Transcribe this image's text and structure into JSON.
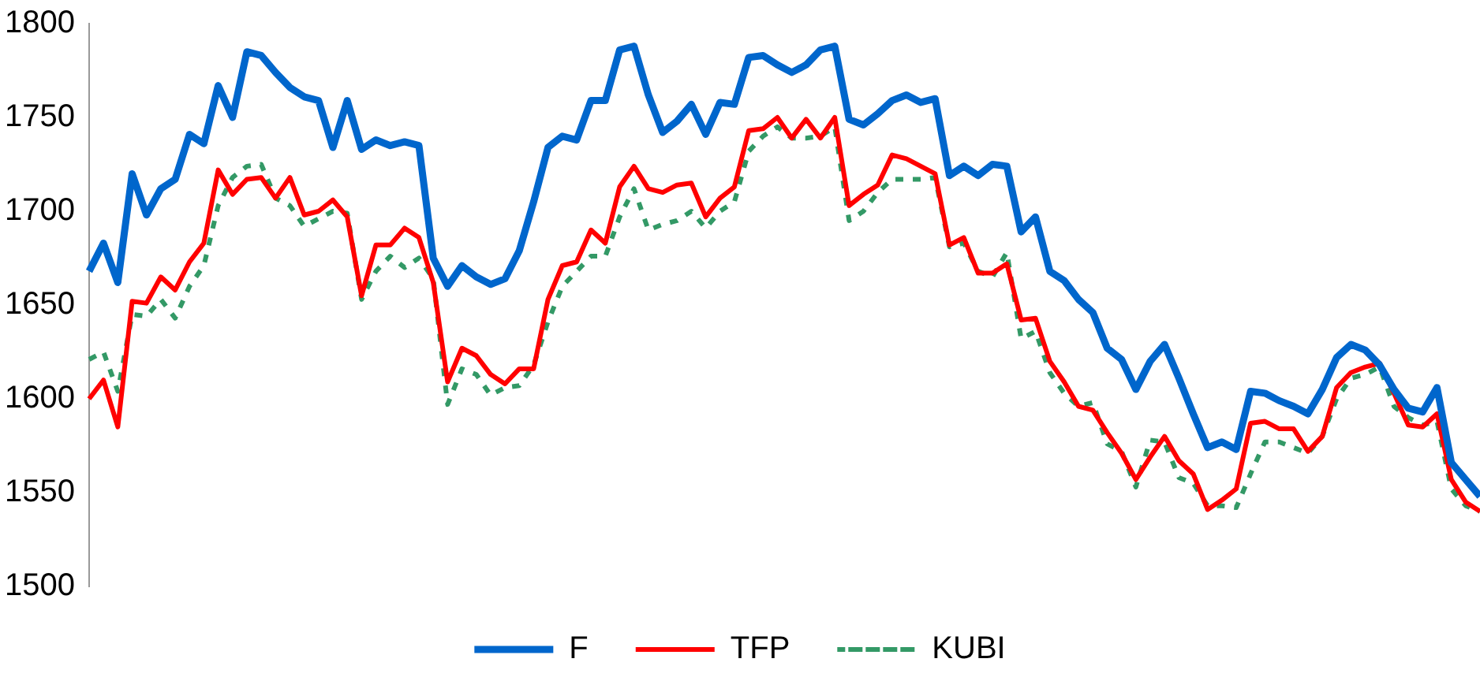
{
  "chart_data": {
    "type": "line",
    "categories": [
      null,
      null,
      null,
      null,
      null,
      null,
      null,
      null,
      null,
      null,
      null,
      null,
      null,
      null,
      null,
      null,
      null,
      null,
      null,
      null,
      null,
      null,
      null,
      null,
      null,
      null,
      null,
      null,
      null,
      null,
      null,
      null,
      null,
      null,
      null,
      null,
      null,
      null,
      null,
      null,
      null,
      null,
      null,
      null,
      null,
      null,
      null,
      null,
      null,
      null,
      null,
      null,
      null,
      null,
      null,
      null,
      null,
      null,
      null,
      null,
      null,
      null,
      null,
      null,
      null,
      null,
      null,
      null,
      null,
      null,
      null,
      null,
      null,
      null,
      null,
      null,
      null,
      null,
      null,
      null,
      null,
      null,
      null,
      null,
      null,
      null,
      null,
      null,
      null,
      null,
      null,
      null,
      null,
      null,
      null,
      null,
      null,
      null
    ],
    "series": [
      {
        "name": "F",
        "color": "#0066cc",
        "line_style": "solid",
        "values": [
          1668,
          1683,
          1662,
          1720,
          1698,
          1712,
          1717,
          1741,
          1736,
          1767,
          1750,
          1785,
          1783,
          1774,
          1766,
          1761,
          1759,
          1734,
          1759,
          1733,
          1738,
          1735,
          1737,
          1735,
          1675,
          1660,
          1671,
          1665,
          1661,
          1664,
          1679,
          1705,
          1734,
          1740,
          1738,
          1759,
          1759,
          1786,
          1788,
          1762,
          1742,
          1748,
          1757,
          1741,
          1758,
          1757,
          1782,
          1783,
          1778,
          1774,
          1778,
          1786,
          1788,
          1749,
          1746,
          1752,
          1759,
          1762,
          1758,
          1760,
          1719,
          1724,
          1719,
          1725,
          1724,
          1689,
          1697,
          1668,
          1663,
          1653,
          1646,
          1627,
          1621,
          1605,
          1620,
          1629,
          1611,
          1592,
          1574,
          1577,
          1573,
          1604,
          1603,
          1599,
          1596,
          1592,
          1605,
          1622,
          1629,
          1626,
          1618,
          1605,
          1595,
          1593,
          1606,
          1566,
          1557,
          1548
        ]
      },
      {
        "name": "TFP",
        "color": "#ff0000",
        "line_style": "solid",
        "values": [
          1600,
          1610,
          1585,
          1652,
          1651,
          1665,
          1658,
          1673,
          1683,
          1722,
          1709,
          1717,
          1718,
          1707,
          1718,
          1698,
          1700,
          1706,
          1697,
          1655,
          1682,
          1682,
          1691,
          1686,
          1662,
          1609,
          1627,
          1623,
          1613,
          1608,
          1616,
          1616,
          1653,
          1671,
          1673,
          1690,
          1683,
          1713,
          1724,
          1712,
          1710,
          1714,
          1715,
          1697,
          1707,
          1713,
          1743,
          1744,
          1750,
          1739,
          1749,
          1739,
          1750,
          1703,
          1709,
          1714,
          1730,
          1728,
          1724,
          1720,
          1682,
          1686,
          1667,
          1667,
          1672,
          1642,
          1643,
          1620,
          1609,
          1596,
          1594,
          1582,
          1571,
          1557,
          1569,
          1580,
          1567,
          1560,
          1541,
          1546,
          1552,
          1587,
          1588,
          1584,
          1584,
          1572,
          1580,
          1606,
          1614,
          1617,
          1619,
          1603,
          1586,
          1585,
          1592,
          1557,
          1545,
          1540
        ]
      },
      {
        "name": "KUBI",
        "color": "#339966",
        "line_style": "dashed",
        "values": [
          1621,
          1625,
          1604,
          1645,
          1644,
          1653,
          1643,
          1660,
          1671,
          1703,
          1718,
          1724,
          1725,
          1707,
          1703,
          1692,
          1696,
          1700,
          1699,
          1653,
          1668,
          1676,
          1670,
          1675,
          1664,
          1597,
          1616,
          1613,
          1602,
          1606,
          1607,
          1618,
          1641,
          1660,
          1668,
          1676,
          1676,
          1697,
          1712,
          1690,
          1693,
          1695,
          1700,
          1691,
          1700,
          1705,
          1732,
          1740,
          1745,
          1739,
          1739,
          1740,
          1745,
          1695,
          1700,
          1710,
          1717,
          1717,
          1717,
          1718,
          1681,
          1683,
          1668,
          1665,
          1678,
          1632,
          1636,
          1614,
          1603,
          1596,
          1598,
          1576,
          1572,
          1553,
          1578,
          1577,
          1558,
          1555,
          1543,
          1543,
          1542,
          1560,
          1577,
          1577,
          1574,
          1571,
          1580,
          1600,
          1611,
          1613,
          1617,
          1596,
          1590,
          1586,
          1588,
          1552,
          1543,
          1540
        ]
      }
    ],
    "ylim": [
      1500,
      1800
    ],
    "yticks": [
      1500,
      1550,
      1600,
      1650,
      1700,
      1750,
      1800
    ],
    "grid": false,
    "legend": "bottom",
    "tick_labels": "y",
    "marker": "none"
  }
}
